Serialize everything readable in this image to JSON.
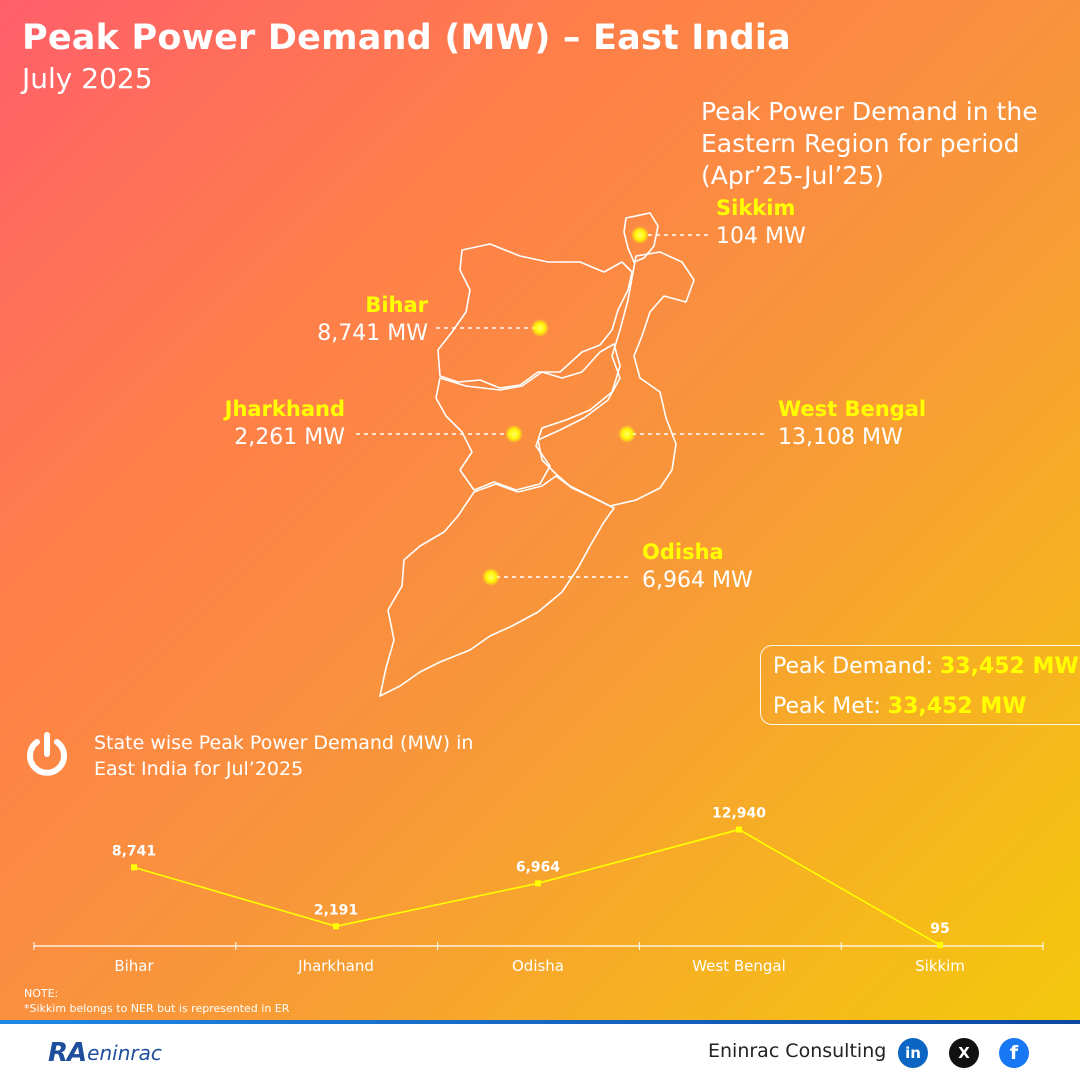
{
  "header": {
    "title": "Peak Power Demand (MW) – East India",
    "subtitle": "July 2025"
  },
  "region_note": "Peak Power Demand in the Eastern Region for period (Apr’25-Jul’25)",
  "states": {
    "sikkim": {
      "name": "Sikkim",
      "value": "104 MW"
    },
    "bihar": {
      "name": "Bihar",
      "value": "8,741 MW"
    },
    "jharkhand": {
      "name": "Jharkhand",
      "value": "2,261 MW"
    },
    "west_bengal": {
      "name": "West Bengal",
      "value": "13,108 MW"
    },
    "odisha": {
      "name": "Odisha",
      "value": "6,964 MW"
    }
  },
  "summary": {
    "demand_label": "Peak Demand:",
    "demand_value": "33,452 MW",
    "met_label": "Peak Met:",
    "met_value": "33,452 MW"
  },
  "chart_title": "State wise Peak Power Demand (MW) in East India for Jul’2025",
  "chart_data": {
    "type": "line",
    "title": "State wise Peak Power Demand (MW) in East India for Jul’2025",
    "categories": [
      "Bihar",
      "Jharkhand",
      "Odisha",
      "West Bengal",
      "Sikkim"
    ],
    "values": [
      8741,
      2191,
      6964,
      12940,
      95
    ],
    "labels": [
      "8,741",
      "2,191",
      "6,964",
      "12,940",
      "95"
    ],
    "ylim": [
      0,
      14000
    ],
    "line_color": "#ffff00"
  },
  "note": {
    "heading": "NOTE:",
    "text": "*Sikkim belongs to NER but is represented in ER"
  },
  "footer": {
    "logo_ra": "RA",
    "logo_text": "eninrac",
    "brand": "Eninrac Consulting",
    "linkedin": "in",
    "x": "X",
    "facebook": "f"
  }
}
